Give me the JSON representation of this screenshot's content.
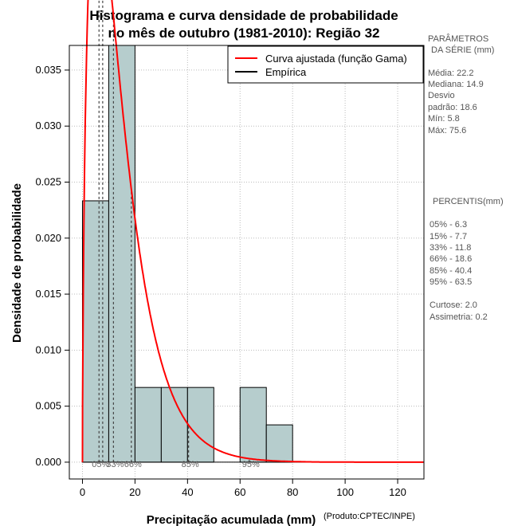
{
  "chart_data": {
    "type": "histogram",
    "title_line1": "Histograma e curva densidade de probabilidade",
    "title_line2": "no mês de outubro (1981-2010): Região 32",
    "xlabel": "Precipitação acumulada (mm)",
    "ylabel": "Densidade de probabilidade",
    "credit": "(Produto:CPTEC/INPE)",
    "xlim": [
      -5,
      130
    ],
    "ylim": [
      -0.0015,
      0.0372
    ],
    "x_ticks": [
      0,
      20,
      40,
      60,
      80,
      100,
      120
    ],
    "y_ticks": [
      0.0,
      0.005,
      0.01,
      0.015,
      0.02,
      0.025,
      0.03,
      0.035
    ],
    "x_tick_labels": [
      "0",
      "20",
      "40",
      "60",
      "80",
      "100",
      "120"
    ],
    "y_tick_labels": [
      "0.000",
      "0.005",
      "0.010",
      "0.015",
      "0.020",
      "0.025",
      "0.030",
      "0.035"
    ],
    "bins": [
      {
        "x0": 0,
        "x1": 10,
        "density": 0.02333
      },
      {
        "x0": 10,
        "x1": 20,
        "density": 0.0372
      },
      {
        "x0": 20,
        "x1": 30,
        "density": 0.00667
      },
      {
        "x0": 30,
        "x1": 40,
        "density": 0.00667
      },
      {
        "x0": 40,
        "x1": 50,
        "density": 0.00667
      },
      {
        "x0": 50,
        "x1": 60,
        "density": 0.0
      },
      {
        "x0": 60,
        "x1": 70,
        "density": 0.00667
      },
      {
        "x0": 70,
        "x1": 80,
        "density": 0.00333
      }
    ],
    "gamma_fit": {
      "shape": 1.62,
      "scale": 8.8
    },
    "legend": {
      "position": "top-right",
      "entries": [
        {
          "label": "Curva ajustada (função Gama)",
          "color": "#ff0000"
        },
        {
          "label": "Empírica",
          "color": "#000000"
        }
      ]
    },
    "percentile_lines": [
      {
        "value": 6.3,
        "label": "05%"
      },
      {
        "value": 7.7,
        "label": "15%"
      },
      {
        "value": 11.8,
        "label": "33%"
      },
      {
        "value": 18.6,
        "label": "66%"
      },
      {
        "value": 40.4,
        "label": "85%"
      },
      {
        "value": 63.5,
        "label": "95%"
      }
    ],
    "percentile_label_text": [
      "05%",
      "33%",
      "66%",
      "85%",
      "95%"
    ],
    "bar_color": "#b6cdcd",
    "curve_color": "#ff0000",
    "grid": true
  },
  "side_panel": {
    "params_title_1": "PARÂMETROS",
    "params_title_2": "DA SÉRIE (mm)",
    "params_lines": [
      "Média:  22.2",
      "Mediana:  14.9",
      "Desvio",
      "padrão:  18.6",
      "Mín:  5.8",
      "Máx:  75.6"
    ],
    "percentis_title": "PERCENTIS(mm)",
    "percentis_lines": [
      "05% -  6.3",
      "15% -  7.7",
      "33% -  11.8",
      "66% -  18.6",
      "85% -  40.4",
      "95% -  63.5"
    ],
    "stats_lines": [
      "Curtose:  2.0",
      "Assimetria:  0.2"
    ]
  }
}
